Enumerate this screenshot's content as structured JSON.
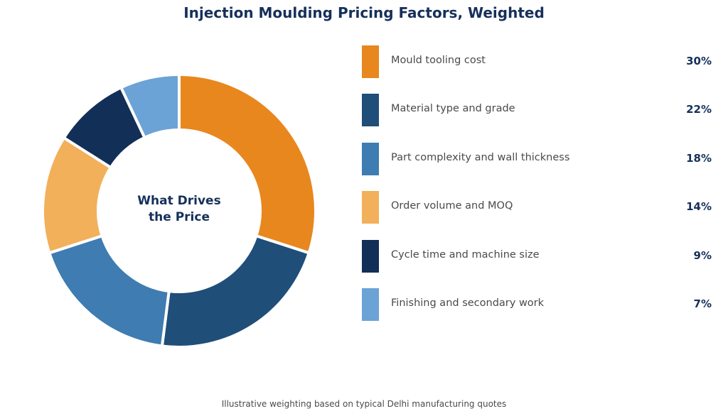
{
  "title": "Injection Moulding Pricing Factors, Weighted",
  "center_label": "What Drives\nthe Price",
  "footnote": "Illustrative weighting based on typical Delhi manufacturing quotes",
  "chart_data": {
    "type": "pie",
    "donut": true,
    "title": "Injection Moulding Pricing Factors, Weighted",
    "legend_position": "right",
    "slices": [
      {
        "label": "Mould tooling cost",
        "value": 30,
        "display": "30%",
        "color": "#e8871e"
      },
      {
        "label": "Material type and grade",
        "value": 22,
        "display": "22%",
        "color": "#1f4e79"
      },
      {
        "label": "Part complexity and wall thickness",
        "value": 18,
        "display": "18%",
        "color": "#3e7cb1"
      },
      {
        "label": "Order volume and MOQ",
        "value": 14,
        "display": "14%",
        "color": "#f2b05a"
      },
      {
        "label": "Cycle time and machine size",
        "value": 9,
        "display": "9%",
        "color": "#122f57"
      },
      {
        "label": "Finishing and secondary work",
        "value": 7,
        "display": "7%",
        "color": "#6ca3d6"
      }
    ]
  }
}
